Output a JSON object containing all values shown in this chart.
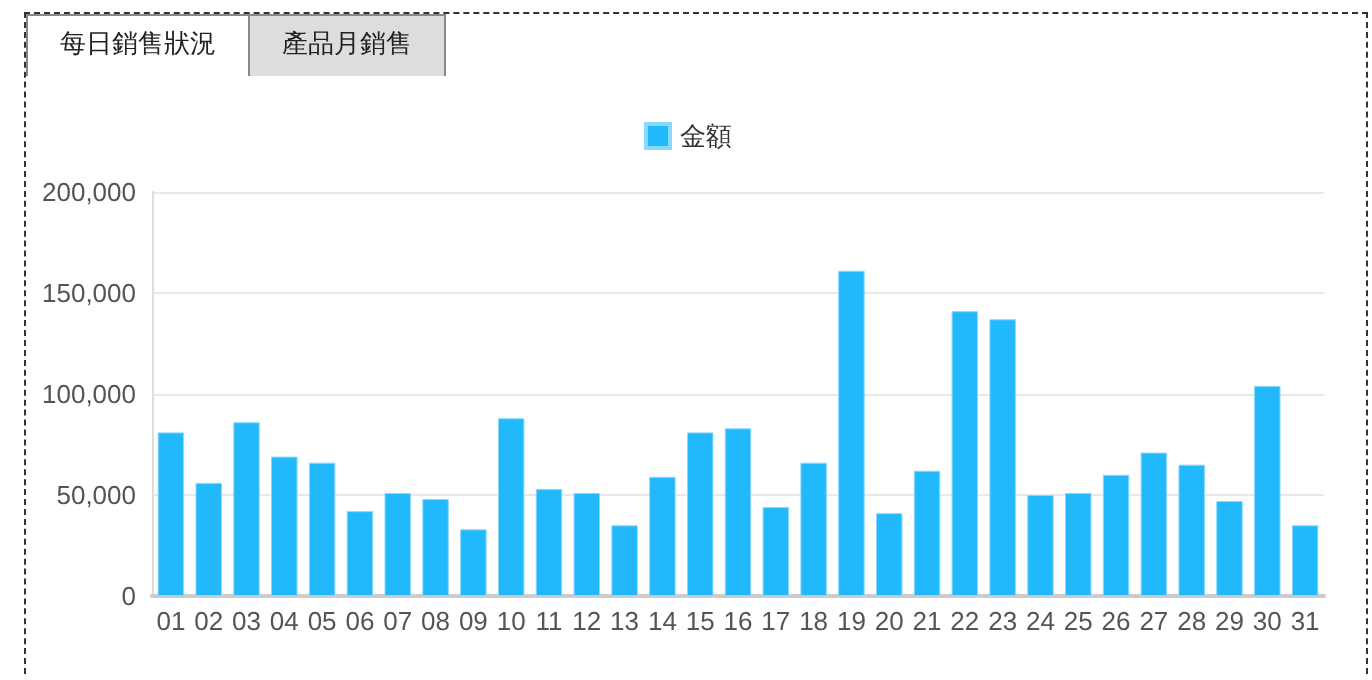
{
  "chart_data": {
    "type": "bar",
    "annotations": [
      "每日銷售狀況",
      "產品月銷售"
    ],
    "categories": [
      "01",
      "02",
      "03",
      "04",
      "05",
      "06",
      "07",
      "08",
      "09",
      "10",
      "11",
      "12",
      "13",
      "14",
      "15",
      "16",
      "17",
      "18",
      "19",
      "20",
      "21",
      "22",
      "23",
      "24",
      "25",
      "26",
      "27",
      "28",
      "29",
      "30",
      "31"
    ],
    "series": [
      {
        "name": "金額",
        "color": "#22b8fc",
        "values": [
          81000,
          56000,
          86000,
          69000,
          66000,
          42000,
          51000,
          48000,
          33000,
          88000,
          53000,
          51000,
          35000,
          59000,
          81000,
          83000,
          44000,
          66000,
          161000,
          41000,
          62000,
          141000,
          137000,
          50000,
          51000,
          60000,
          71000,
          65000,
          47000,
          104000,
          35000
        ]
      }
    ],
    "ylim": [
      0,
      200000
    ],
    "yticks": [
      0,
      {
        "value": 50000,
        "label": "50,000"
      },
      {
        "value": 100000,
        "label": "100,000"
      },
      {
        "value": 150000,
        "label": "150,000"
      },
      {
        "value": 200000,
        "label": "200,000"
      }
    ],
    "grid": "y",
    "legend": "top"
  }
}
